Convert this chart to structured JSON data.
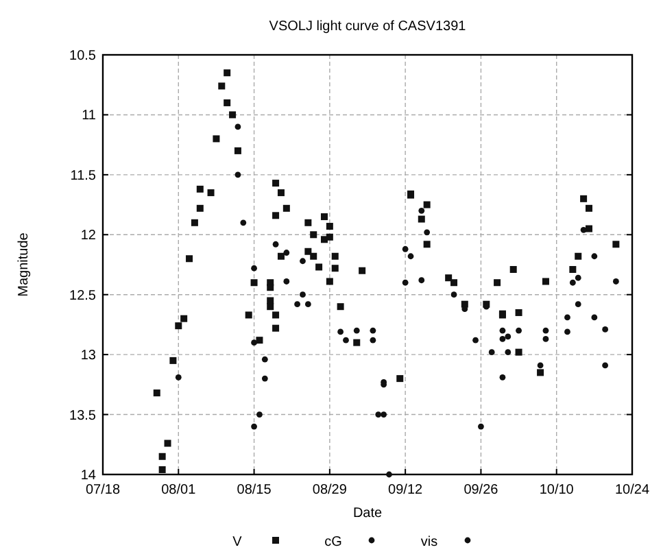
{
  "chart_data": {
    "type": "scatter",
    "title": "VSOLJ light curve of CASV1391",
    "xlabel": "Date",
    "ylabel": "Magnitude",
    "xlim": [
      "--07-18",
      "--10-24"
    ],
    "xticks": [
      {
        "value": "--07-18",
        "label": "07/18"
      },
      {
        "value": "--08-01",
        "label": "08/01"
      },
      {
        "value": "--08-15",
        "label": "08/15"
      },
      {
        "value": "--08-29",
        "label": "08/29"
      },
      {
        "value": "--09-12",
        "label": "09/12"
      },
      {
        "value": "--09-26",
        "label": "09/26"
      },
      {
        "value": "--10-10",
        "label": "10/10"
      },
      {
        "value": "--10-24",
        "label": "10/24"
      }
    ],
    "ylim": [
      14,
      10.5
    ],
    "yticks": [
      10.5,
      11,
      11.5,
      12,
      12.5,
      13,
      13.5,
      14
    ],
    "grid": true,
    "legend": "bottom",
    "series": [
      {
        "name": "V",
        "color": "#111111",
        "marker": "square",
        "x": [
          "--07-28",
          "--07-29",
          "--07-29",
          "--07-30",
          "--07-31",
          "--08-01",
          "--08-02",
          "--08-03",
          "--08-04",
          "--08-05",
          "--08-05",
          "--08-07",
          "--08-08",
          "--08-09",
          "--08-10",
          "--08-10",
          "--08-11",
          "--08-12",
          "--08-15",
          "--08-14",
          "--08-16",
          "--08-18",
          "--08-18",
          "--08-19",
          "--08-19",
          "--08-20",
          "--08-21",
          "--08-19",
          "--08-20",
          "--08-18",
          "--08-18",
          "--08-19",
          "--08-25",
          "--08-26",
          "--08-25",
          "--08-26",
          "--08-27",
          "--08-28",
          "--08-29",
          "--08-28",
          "--08-29",
          "--08-30",
          "--08-30",
          "--08-29",
          "--08-31",
          "--09-03",
          "--09-04",
          "--09-11",
          "--09-13",
          "--09-13",
          "--09-16",
          "--09-15",
          "--09-16",
          "--09-20",
          "--09-21",
          "--09-23",
          "--09-27",
          "--09-29",
          "--09-30",
          "--09-30",
          "--10-02",
          "--10-03",
          "--10-03",
          "--10-07",
          "--10-08",
          "--10-13",
          "--10-14",
          "--10-15",
          "--10-16",
          "--10-16",
          "--10-21"
        ],
        "values": [
          13.32,
          13.85,
          13.96,
          13.74,
          13.05,
          12.76,
          12.7,
          12.2,
          11.9,
          11.62,
          11.78,
          11.65,
          11.2,
          10.76,
          10.65,
          10.9,
          11.0,
          11.3,
          12.4,
          12.67,
          12.88,
          12.4,
          12.6,
          12.78,
          11.57,
          11.65,
          11.78,
          11.84,
          12.18,
          12.44,
          12.55,
          12.67,
          11.9,
          12.0,
          12.14,
          12.18,
          12.27,
          11.85,
          11.93,
          12.04,
          12.02,
          12.18,
          12.28,
          12.39,
          12.6,
          12.9,
          12.3,
          13.2,
          11.67,
          11.66,
          11.75,
          11.87,
          12.08,
          12.36,
          12.4,
          12.58,
          12.58,
          12.4,
          12.67,
          12.66,
          12.29,
          12.65,
          12.98,
          13.15,
          12.39,
          12.29,
          12.18,
          11.7,
          11.78,
          11.95,
          12.08
        ]
      },
      {
        "name": "cG",
        "color": "#111111",
        "marker": "circle",
        "x": [
          "--08-01",
          "--08-12",
          "--08-12",
          "--08-13",
          "--08-15",
          "--08-15",
          "--08-16",
          "--08-17",
          "--08-17",
          "--08-19",
          "--08-21",
          "--08-21",
          "--08-23",
          "--08-24",
          "--08-25",
          "--08-24",
          "--08-31",
          "--09-01",
          "--09-03",
          "--09-06",
          "--09-06",
          "--09-08",
          "--09-08",
          "--09-07",
          "--09-08",
          "--09-12",
          "--09-13",
          "--09-12",
          "--09-15",
          "--09-16",
          "--09-15",
          "--09-21",
          "--09-23",
          "--09-25",
          "--09-27",
          "--09-30",
          "--09-30",
          "--10-01",
          "--09-28",
          "--10-01",
          "--09-30",
          "--10-03",
          "--10-07",
          "--10-08",
          "--10-08",
          "--10-12",
          "--10-12",
          "--10-13",
          "--10-14",
          "--10-14",
          "--10-15",
          "--10-17",
          "--10-17",
          "--10-19",
          "--10-19",
          "--10-21"
        ],
        "values": [
          13.19,
          11.1,
          11.5,
          11.9,
          12.28,
          12.9,
          13.5,
          13.04,
          13.2,
          12.08,
          12.15,
          12.39,
          12.58,
          12.5,
          12.58,
          12.22,
          12.81,
          12.88,
          12.8,
          12.8,
          12.88,
          13.25,
          13.23,
          13.5,
          13.5,
          12.12,
          12.18,
          12.4,
          11.8,
          11.98,
          12.38,
          12.5,
          12.62,
          12.88,
          12.6,
          12.8,
          12.87,
          12.85,
          12.98,
          12.98,
          13.19,
          12.8,
          13.09,
          12.8,
          12.87,
          12.69,
          12.81,
          12.4,
          12.36,
          12.58,
          11.96,
          12.18,
          12.69,
          12.79,
          13.09,
          12.39
        ]
      },
      {
        "name": "vis",
        "color": "#111111",
        "marker": "circle",
        "x": [
          "--08-15",
          "--09-09",
          "--09-26"
        ],
        "values": [
          13.6,
          14.0,
          13.6
        ]
      }
    ]
  }
}
